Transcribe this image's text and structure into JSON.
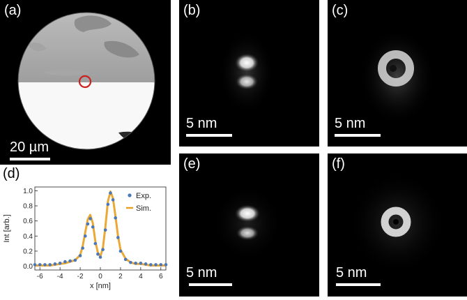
{
  "panels": {
    "a": {
      "label": "(a)",
      "scale": "20 µm"
    },
    "b": {
      "label": "(b)",
      "scale": "5 nm"
    },
    "c": {
      "label": "(c)",
      "scale": "5 nm"
    },
    "e": {
      "label": "(e)",
      "scale": "5 nm"
    },
    "f": {
      "label": "(f)",
      "scale": "5 nm"
    },
    "d": {
      "label": "(d)"
    }
  },
  "chart_data": {
    "type": "scatter",
    "xlabel": "x [nm]",
    "ylabel": "Int [arb.]",
    "xlim": [
      -6.5,
      6.5
    ],
    "ylim": [
      -0.05,
      1.05
    ],
    "xticks": [
      "-6",
      "-4",
      "-2",
      "0",
      "2",
      "4",
      "6"
    ],
    "yticks": [
      "0.0",
      "0.2",
      "0.4",
      "0.6",
      "0.8",
      "1.0"
    ],
    "legend_position": "top-right",
    "series": [
      {
        "name": "Exp.",
        "style": "points",
        "color": "#4a78b8",
        "x": [
          -6.5,
          -6.0,
          -5.5,
          -5.0,
          -4.5,
          -4.0,
          -3.5,
          -3.0,
          -2.5,
          -2.0,
          -1.75,
          -1.5,
          -1.25,
          -1.0,
          -0.75,
          -0.5,
          -0.25,
          0.0,
          0.25,
          0.5,
          0.75,
          1.0,
          1.25,
          1.5,
          1.75,
          2.0,
          2.5,
          3.0,
          3.5,
          4.0,
          4.5,
          5.0,
          5.5,
          6.0,
          6.5
        ],
        "y": [
          0.02,
          0.02,
          0.02,
          0.02,
          0.03,
          0.04,
          0.06,
          0.07,
          0.08,
          0.14,
          0.24,
          0.4,
          0.56,
          0.63,
          0.52,
          0.3,
          0.16,
          0.12,
          0.22,
          0.48,
          0.82,
          0.97,
          0.88,
          0.64,
          0.38,
          0.2,
          0.09,
          0.05,
          0.04,
          0.04,
          0.03,
          0.02,
          0.02,
          0.02,
          0.02
        ]
      },
      {
        "name": "Sim.",
        "style": "line",
        "color": "#e8a020",
        "x": [
          -6.5,
          -6.0,
          -5.5,
          -5.0,
          -4.5,
          -4.0,
          -3.5,
          -3.0,
          -2.5,
          -2.0,
          -1.75,
          -1.5,
          -1.25,
          -1.0,
          -0.75,
          -0.5,
          -0.25,
          0.0,
          0.25,
          0.5,
          0.75,
          1.0,
          1.25,
          1.5,
          1.75,
          2.0,
          2.5,
          3.0,
          3.5,
          4.0,
          4.5,
          5.0,
          5.5,
          6.0,
          6.5
        ],
        "y": [
          0.01,
          0.01,
          0.01,
          0.01,
          0.02,
          0.03,
          0.04,
          0.06,
          0.08,
          0.15,
          0.27,
          0.45,
          0.62,
          0.68,
          0.57,
          0.33,
          0.18,
          0.13,
          0.24,
          0.52,
          0.86,
          0.99,
          0.9,
          0.66,
          0.4,
          0.22,
          0.1,
          0.05,
          0.03,
          0.03,
          0.02,
          0.01,
          0.01,
          0.01,
          0.01
        ]
      }
    ]
  }
}
